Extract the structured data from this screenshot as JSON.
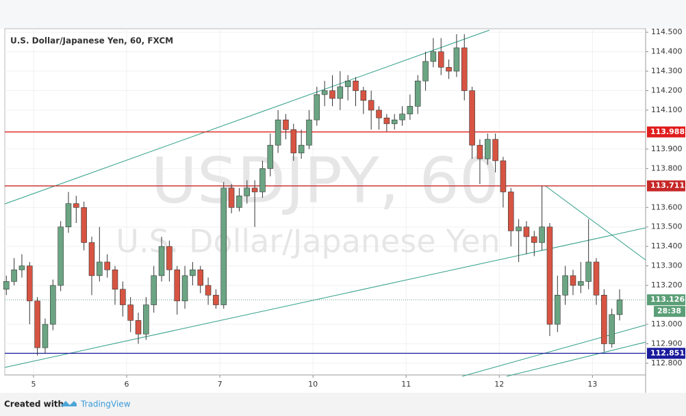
{
  "chart_data": {
    "type": "candlestick",
    "title": "U.S. Dollar/Japanese Yen, 60, FXCM",
    "watermark": "USDJPY, 60",
    "watermark_subtitle": "U.S. Dollar/Japanese Yen",
    "x": [
      -7,
      -5,
      -3,
      -1,
      1,
      3,
      5,
      7,
      9,
      11,
      13,
      15,
      17,
      19,
      21,
      23,
      25,
      27,
      29,
      31,
      33,
      35,
      37,
      39,
      41,
      43,
      45,
      47,
      49,
      51,
      53,
      55,
      57,
      59,
      61,
      63,
      65,
      67,
      69,
      71,
      73,
      75,
      77,
      79,
      81,
      83,
      85,
      87,
      89,
      91,
      93,
      95,
      97,
      99,
      101,
      103,
      105,
      107,
      109,
      111,
      113,
      115,
      117,
      119,
      121,
      123,
      125,
      127,
      129,
      131,
      133,
      135,
      137,
      139,
      141,
      143,
      145,
      147,
      149,
      151
    ],
    "open": [
      113.18,
      113.22,
      113.28,
      113.3,
      113.12,
      112.88,
      113.0,
      113.2,
      113.5,
      113.62,
      113.6,
      113.42,
      113.25,
      113.32,
      113.28,
      113.18,
      113.1,
      113.02,
      112.95,
      113.1,
      113.25,
      113.4,
      113.28,
      113.12,
      113.25,
      113.28,
      113.2,
      113.15,
      113.1,
      113.7,
      113.6,
      113.66,
      113.7,
      113.68,
      113.8,
      113.92,
      114.05,
      114.0,
      113.88,
      113.92,
      114.05,
      114.18,
      114.2,
      114.16,
      114.22,
      114.25,
      114.2,
      114.15,
      114.1,
      114.06,
      114.03,
      114.05,
      114.08,
      114.12,
      114.25,
      114.35,
      114.4,
      114.32,
      114.3,
      114.42,
      114.2,
      113.92,
      113.85,
      113.95,
      113.84,
      113.68,
      113.48,
      113.5,
      113.45,
      113.42,
      113.5,
      113.0,
      113.15,
      113.25,
      113.2,
      113.22,
      113.32,
      113.15,
      112.9,
      113.05
    ],
    "high": [
      113.25,
      113.34,
      113.36,
      113.32,
      113.14,
      113.03,
      113.23,
      113.53,
      113.68,
      113.66,
      113.63,
      113.45,
      113.5,
      113.36,
      113.3,
      113.22,
      113.14,
      113.06,
      113.14,
      113.3,
      113.45,
      113.43,
      113.3,
      113.3,
      113.32,
      113.3,
      113.24,
      113.18,
      113.73,
      113.72,
      113.7,
      113.74,
      113.74,
      113.84,
      113.98,
      114.1,
      114.08,
      114.03,
      114.0,
      114.1,
      114.22,
      114.25,
      114.28,
      114.3,
      114.28,
      114.27,
      114.22,
      114.2,
      114.12,
      114.08,
      114.08,
      114.12,
      114.18,
      114.28,
      114.4,
      114.47,
      114.47,
      114.36,
      114.49,
      114.49,
      114.22,
      113.95,
      113.98,
      113.98,
      113.86,
      113.7,
      113.54,
      113.53,
      113.48,
      113.71,
      113.52,
      113.25,
      113.3,
      113.28,
      113.32,
      113.54,
      113.34,
      113.18,
      113.08,
      113.18
    ],
    "low": [
      113.15,
      113.2,
      113.24,
      113.0,
      112.84,
      112.85,
      112.97,
      113.17,
      113.47,
      113.52,
      113.38,
      113.15,
      113.22,
      113.24,
      113.1,
      113.04,
      112.96,
      112.9,
      112.92,
      113.06,
      113.22,
      113.22,
      113.05,
      113.08,
      113.2,
      113.16,
      113.1,
      113.08,
      113.08,
      113.57,
      113.58,
      113.62,
      113.5,
      113.65,
      113.76,
      113.88,
      113.95,
      113.84,
      113.85,
      113.9,
      114.02,
      114.12,
      114.12,
      114.1,
      114.15,
      114.12,
      114.08,
      114.0,
      114.0,
      113.99,
      114.0,
      114.02,
      114.05,
      114.08,
      114.2,
      114.32,
      114.28,
      114.26,
      114.27,
      114.15,
      113.85,
      113.72,
      113.82,
      113.78,
      113.6,
      113.4,
      113.32,
      113.36,
      113.35,
      113.38,
      112.94,
      112.96,
      113.1,
      113.15,
      113.16,
      113.18,
      113.1,
      112.86,
      112.88,
      113.02
    ],
    "close": [
      113.22,
      113.28,
      113.3,
      113.12,
      112.88,
      113.0,
      113.2,
      113.5,
      113.62,
      113.6,
      113.42,
      113.25,
      113.32,
      113.28,
      113.18,
      113.1,
      113.02,
      112.95,
      113.1,
      113.25,
      113.4,
      113.28,
      113.12,
      113.25,
      113.28,
      113.2,
      113.15,
      113.1,
      113.7,
      113.6,
      113.66,
      113.7,
      113.68,
      113.8,
      113.92,
      114.05,
      114.0,
      113.88,
      113.92,
      114.05,
      114.18,
      114.2,
      114.16,
      114.22,
      114.25,
      114.2,
      114.15,
      114.1,
      114.06,
      114.03,
      114.05,
      114.08,
      114.12,
      114.25,
      114.35,
      114.4,
      114.32,
      114.3,
      114.42,
      114.2,
      113.92,
      113.85,
      113.95,
      113.84,
      113.68,
      113.48,
      113.5,
      113.45,
      113.42,
      113.5,
      113.0,
      113.15,
      113.25,
      113.2,
      113.22,
      113.32,
      113.15,
      112.9,
      113.05,
      113.126
    ],
    "up_color": "#6ba583",
    "down_color": "#d75442",
    "xlim": [
      -7.4,
      157.7
    ],
    "xticks": [
      {
        "value": 0,
        "label": "5"
      },
      {
        "value": 24,
        "label": "6"
      },
      {
        "value": 48,
        "label": "7"
      },
      {
        "value": 72,
        "label": "10"
      },
      {
        "value": 96,
        "label": "11"
      },
      {
        "value": 120,
        "label": "12"
      },
      {
        "value": 144,
        "label": "13"
      }
    ],
    "ylim": [
      112.74,
      114.518
    ],
    "yticks": [
      {
        "value": 112.8,
        "label": "112.800"
      },
      {
        "value": 112.9,
        "label": "112.900"
      },
      {
        "value": 113.0,
        "label": "113.000"
      },
      {
        "value": 113.2,
        "label": "113.200"
      },
      {
        "value": 113.3,
        "label": "113.300"
      },
      {
        "value": 113.4,
        "label": "113.400"
      },
      {
        "value": 113.5,
        "label": "113.500"
      },
      {
        "value": 113.6,
        "label": "113.600"
      },
      {
        "value": 113.8,
        "label": "113.800"
      },
      {
        "value": 113.9,
        "label": "113.900"
      },
      {
        "value": 114.1,
        "label": "114.100"
      },
      {
        "value": 114.2,
        "label": "114.200"
      },
      {
        "value": 114.3,
        "label": "114.300"
      },
      {
        "value": 114.4,
        "label": "114.400"
      },
      {
        "value": 114.5,
        "label": "114.500"
      }
    ],
    "grid": true,
    "levels": [
      {
        "value": 113.988,
        "color": "#e01e1e"
      },
      {
        "value": 113.711,
        "color": "#c62828"
      },
      {
        "value": 112.851,
        "color": "#1a1a9c"
      }
    ],
    "last_price": {
      "value": 113.126,
      "color": "#5b9f78"
    },
    "countdown": "28:38"
  },
  "footer": {
    "created_with": "Created with",
    "brand": "TradingView"
  }
}
